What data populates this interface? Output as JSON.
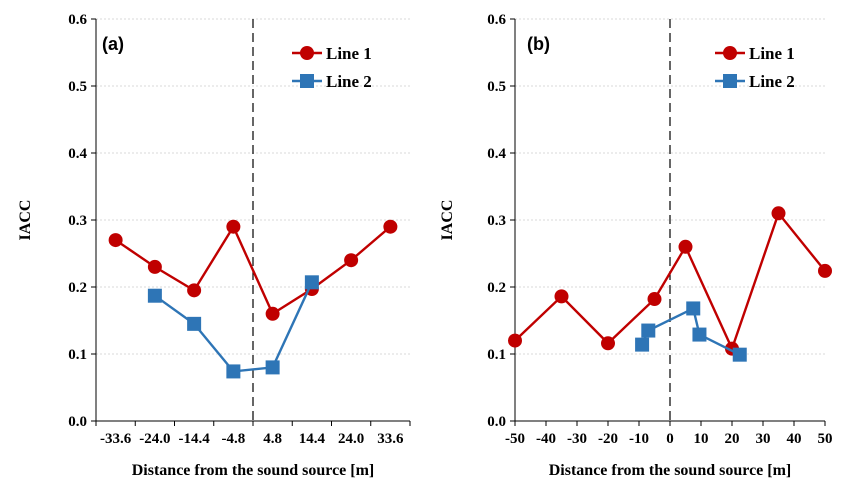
{
  "chart_data": [
    {
      "type": "line",
      "panel_label": "(a)",
      "xlabel": "Distance from the sound source [m]",
      "ylabel": "IACC",
      "x_scale": "categorical",
      "categories": [
        "-33.6",
        "-24.0",
        "-14.4",
        "-4.8",
        "4.8",
        "14.4",
        "24.0",
        "33.6"
      ],
      "ylim": [
        0,
        0.6
      ],
      "yticks": [
        "0.0",
        "0.1",
        "0.2",
        "0.3",
        "0.4",
        "0.5",
        "0.6"
      ],
      "grid": "horizontal",
      "legend_position": "top-right",
      "divider_line": "between -4.8 and 4.8 (dashed)",
      "series": [
        {
          "name": "Line 1",
          "color": "#c00000",
          "marker": "circle",
          "values": [
            0.27,
            0.23,
            0.195,
            0.29,
            0.16,
            0.197,
            0.24,
            0.29
          ]
        },
        {
          "name": "Line 2",
          "color": "#2e75b6",
          "marker": "square",
          "values": [
            null,
            0.187,
            0.145,
            0.074,
            0.08,
            0.207,
            null,
            null
          ]
        }
      ]
    },
    {
      "type": "line",
      "panel_label": "(b)",
      "xlabel": "Distance from the sound source [m]",
      "ylabel": "IACC",
      "xlim": [
        -50,
        50
      ],
      "xticks": [
        "-50",
        "-40",
        "-30",
        "-20",
        "-10",
        "0",
        "10",
        "20",
        "30",
        "40",
        "50"
      ],
      "ylim": [
        0,
        0.6
      ],
      "yticks": [
        "0.0",
        "0.1",
        "0.2",
        "0.3",
        "0.4",
        "0.5",
        "0.6"
      ],
      "grid": "horizontal",
      "legend_position": "top-right",
      "divider_line": "x = 0 (dashed)",
      "series": [
        {
          "name": "Line 1",
          "color": "#c00000",
          "marker": "circle",
          "x": [
            -50,
            -35,
            -20,
            -5,
            5,
            20,
            35,
            50
          ],
          "y": [
            0.12,
            0.186,
            0.116,
            0.182,
            0.26,
            0.108,
            0.31,
            0.224
          ]
        },
        {
          "name": "Line 2",
          "color": "#2e75b6",
          "marker": "square",
          "x": [
            -9,
            -7,
            7.5,
            9.5,
            22.5
          ],
          "y": [
            0.114,
            0.135,
            0.168,
            0.129,
            0.099
          ]
        }
      ]
    }
  ]
}
